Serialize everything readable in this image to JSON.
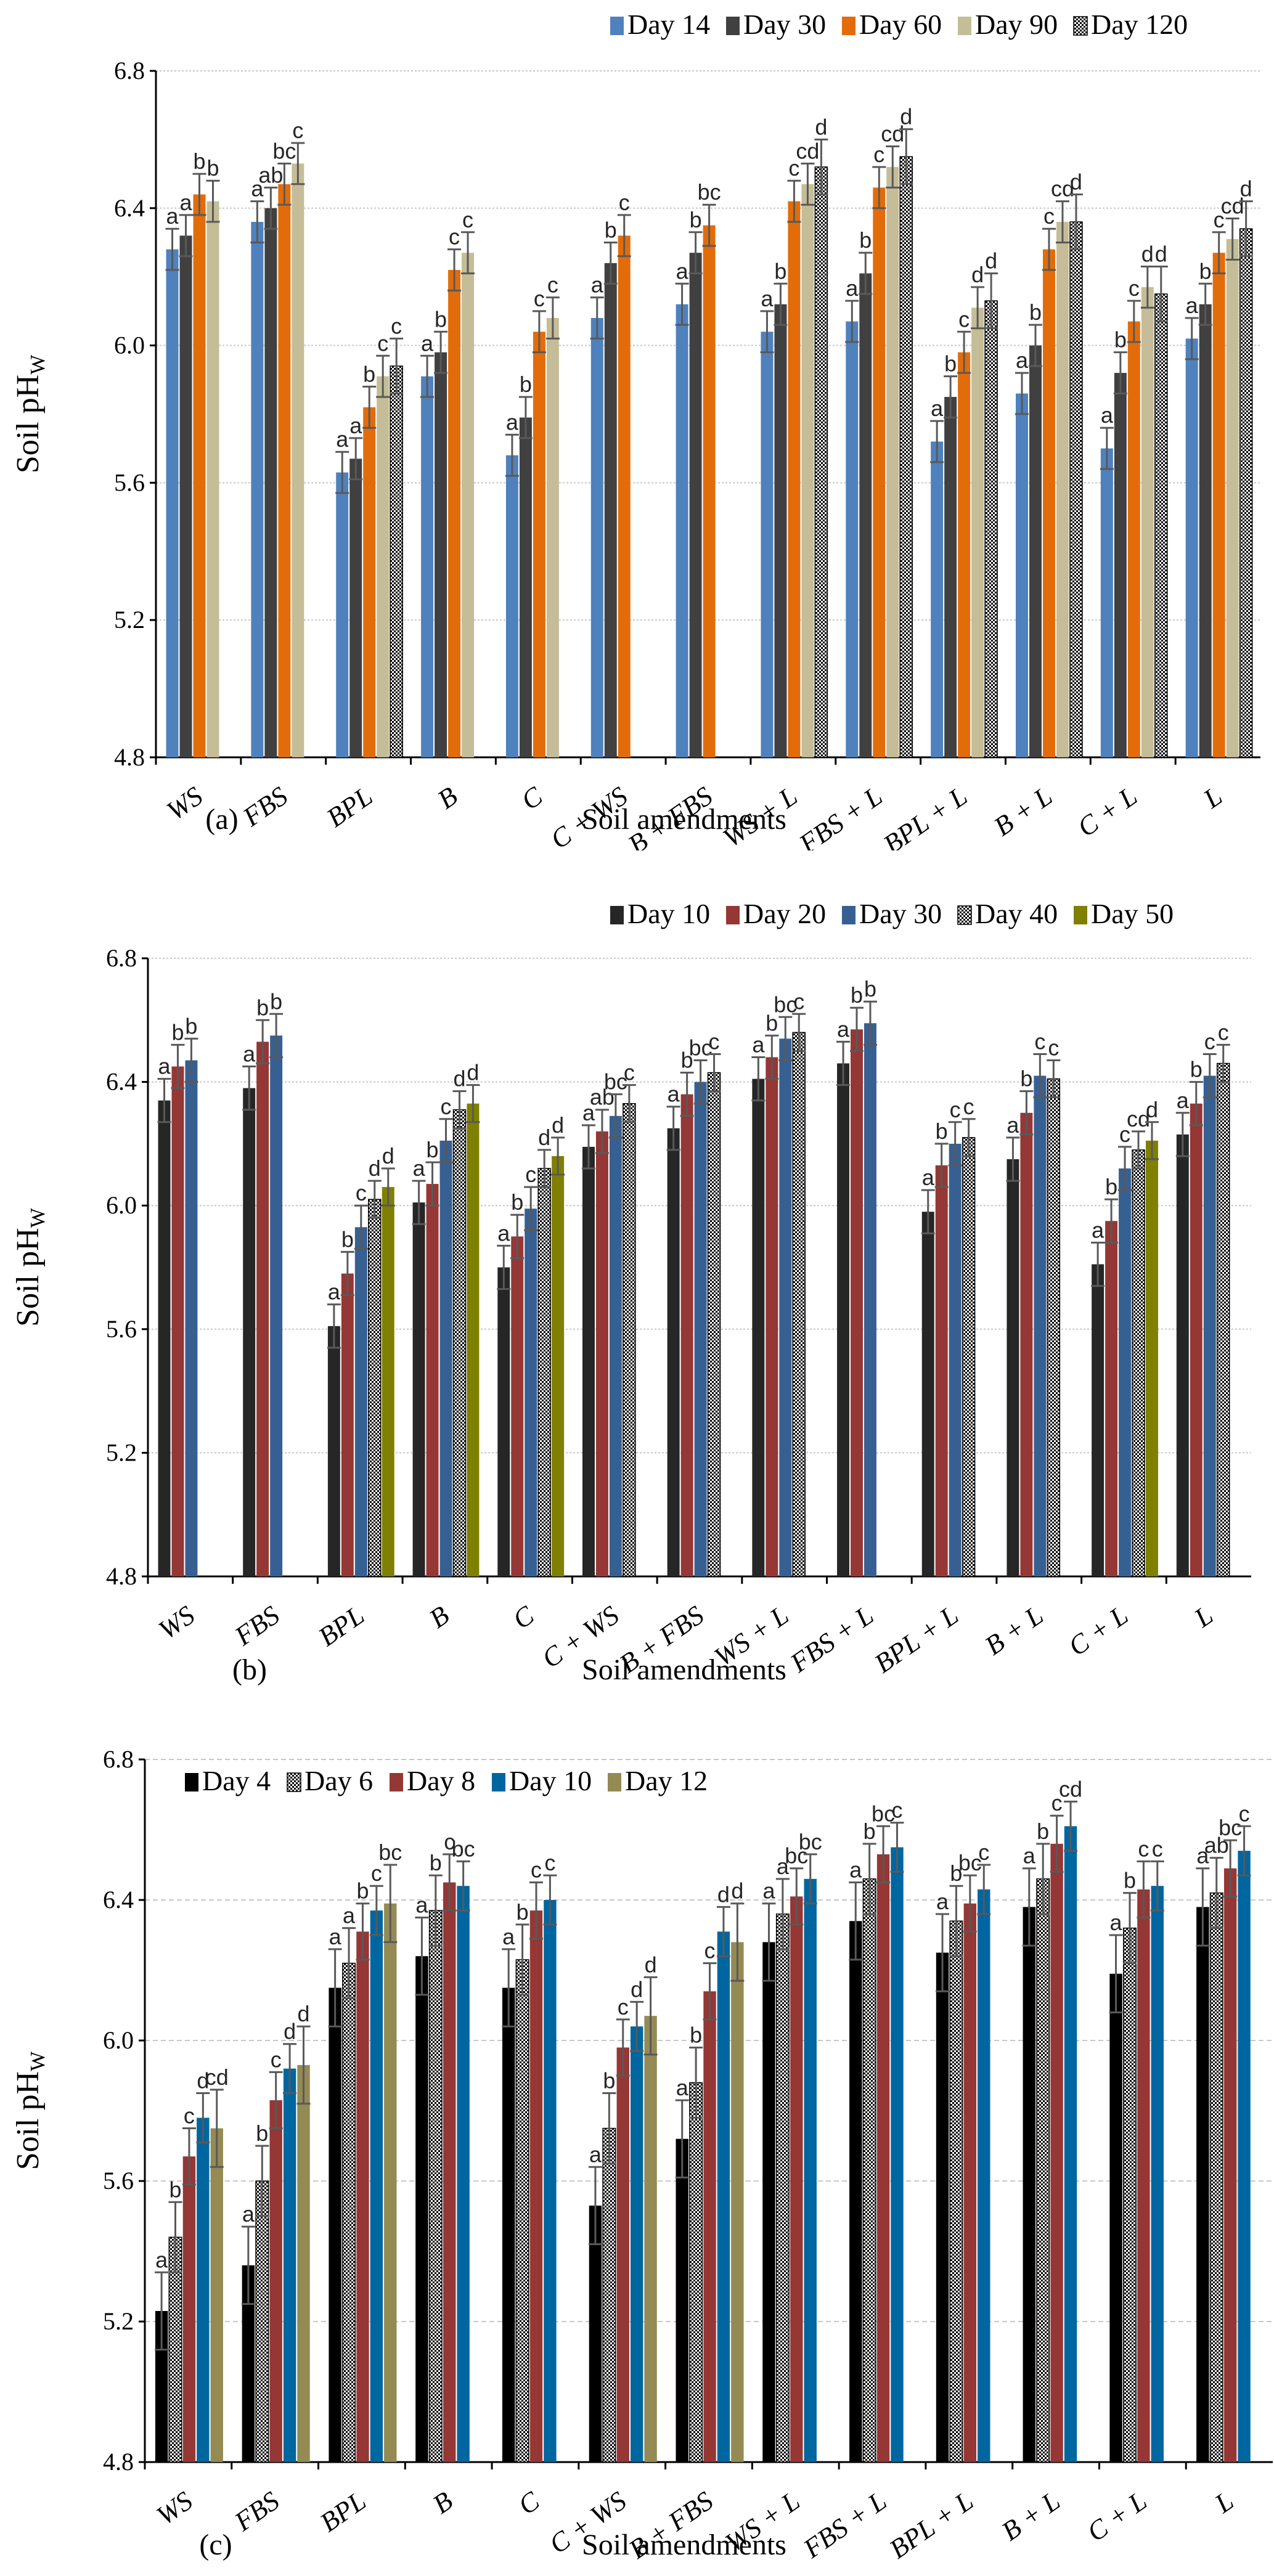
{
  "chart_data": [
    {
      "type": "bar",
      "panel_label": "(a)",
      "xlabel": "Soil amendments",
      "ylabel": "Soil pH",
      "ylabel_sub": "W",
      "ylim": [
        4.8,
        6.8
      ],
      "yticks": [
        "4.8",
        "5.2",
        "5.6",
        "6.0",
        "6.4",
        "6.8"
      ],
      "grid": "dotted",
      "legend_position": "top-right",
      "categories": [
        "WS",
        "FBS",
        "BPL",
        "B",
        "C",
        "C + WS",
        "B + FBS",
        "WS + L",
        "FBS + L",
        "BPL + L",
        "B + L",
        "C + L",
        "L"
      ],
      "series": [
        {
          "name": "Day 14",
          "color": "#4f81bd",
          "pattern": "solid",
          "values": [
            6.28,
            6.36,
            5.63,
            5.91,
            5.68,
            6.08,
            6.12,
            6.04,
            6.07,
            5.72,
            5.86,
            5.7,
            6.02
          ],
          "errors": [
            0.06,
            0.06,
            0.06,
            0.06,
            0.06,
            0.06,
            0.06,
            0.06,
            0.06,
            0.06,
            0.06,
            0.06,
            0.06
          ],
          "letters": [
            "a",
            "a",
            "a",
            "a",
            "a",
            "a",
            "a",
            "a",
            "a",
            "a",
            "a",
            "a",
            "a"
          ]
        },
        {
          "name": "Day 30",
          "color": "#404040",
          "pattern": "solid",
          "values": [
            6.32,
            6.4,
            5.67,
            5.98,
            5.79,
            6.24,
            6.27,
            6.12,
            6.21,
            5.85,
            6.0,
            5.92,
            6.12
          ],
          "errors": [
            0.06,
            0.06,
            0.06,
            0.06,
            0.06,
            0.06,
            0.06,
            0.06,
            0.06,
            0.06,
            0.06,
            0.06,
            0.06
          ],
          "letters": [
            "a",
            "ab",
            "a",
            "b",
            "b",
            "b",
            "b",
            "b",
            "b",
            "b",
            "b",
            "b",
            "b"
          ]
        },
        {
          "name": "Day 60",
          "color": "#e36c0a",
          "pattern": "solid",
          "values": [
            6.44,
            6.47,
            5.82,
            6.22,
            6.04,
            6.32,
            6.35,
            6.42,
            6.46,
            5.98,
            6.28,
            6.07,
            6.27
          ],
          "errors": [
            0.06,
            0.06,
            0.06,
            0.06,
            0.06,
            0.06,
            0.06,
            0.06,
            0.06,
            0.06,
            0.06,
            0.06,
            0.06
          ],
          "letters": [
            "b",
            "bc",
            "b",
            "c",
            "c",
            "c",
            "bc",
            "c",
            "c",
            "c",
            "c",
            "c",
            "c"
          ]
        },
        {
          "name": "Day 90",
          "color": "#c4bd97",
          "pattern": "solid",
          "values": [
            6.42,
            6.53,
            5.91,
            6.27,
            6.08,
            null,
            null,
            6.47,
            6.52,
            6.11,
            6.36,
            6.17,
            6.31
          ],
          "errors": [
            0.06,
            0.06,
            0.06,
            0.06,
            0.06,
            null,
            null,
            0.06,
            0.06,
            0.06,
            0.06,
            0.06,
            0.06
          ],
          "letters": [
            "b",
            "c",
            "c",
            "c",
            "c",
            "",
            "",
            "cd",
            "cd",
            "d",
            "cd",
            "d",
            "cd"
          ]
        },
        {
          "name": "Day 120",
          "color": "#ffffff",
          "pattern": "checker",
          "values": [
            null,
            null,
            5.94,
            null,
            null,
            null,
            null,
            6.52,
            6.55,
            6.13,
            6.36,
            6.15,
            6.34
          ],
          "errors": [
            null,
            null,
            0.08,
            null,
            null,
            null,
            null,
            0.08,
            0.08,
            0.08,
            0.08,
            0.08,
            0.08
          ],
          "letters": [
            "",
            "",
            "c",
            "",
            "",
            "",
            "",
            "d",
            "d",
            "d",
            "d",
            "d",
            "d"
          ]
        }
      ]
    },
    {
      "type": "bar",
      "panel_label": "(b)",
      "xlabel": "Soil amendments",
      "ylabel": "Soil pH",
      "ylabel_sub": "W",
      "ylim": [
        4.8,
        6.8
      ],
      "yticks": [
        "4.8",
        "5.2",
        "5.6",
        "6.0",
        "6.4",
        "6.8"
      ],
      "grid": "dotted",
      "legend_position": "top-right",
      "categories": [
        "WS",
        "FBS",
        "BPL",
        "B",
        "C",
        "C + WS",
        "B + FBS",
        "WS + L",
        "FBS + L",
        "BPL + L",
        "B + L",
        "C + L",
        "L"
      ],
      "series": [
        {
          "name": "Day 10",
          "color": "#262626",
          "pattern": "solid",
          "values": [
            6.34,
            6.38,
            5.61,
            6.01,
            5.8,
            6.19,
            6.25,
            6.41,
            6.46,
            5.98,
            6.15,
            5.81,
            6.23
          ],
          "errors": [
            0.07,
            0.07,
            0.07,
            0.07,
            0.07,
            0.07,
            0.07,
            0.07,
            0.07,
            0.07,
            0.07,
            0.07,
            0.07
          ],
          "letters": [
            "a",
            "a",
            "a",
            "a",
            "a",
            "a",
            "a",
            "a",
            "a",
            "a",
            "a",
            "a",
            "a"
          ]
        },
        {
          "name": "Day 20",
          "color": "#953735",
          "pattern": "solid",
          "values": [
            6.45,
            6.53,
            5.78,
            6.07,
            5.9,
            6.24,
            6.36,
            6.48,
            6.57,
            6.13,
            6.3,
            5.95,
            6.33
          ],
          "errors": [
            0.07,
            0.07,
            0.07,
            0.07,
            0.07,
            0.07,
            0.07,
            0.07,
            0.07,
            0.07,
            0.07,
            0.07,
            0.07
          ],
          "letters": [
            "b",
            "b",
            "b",
            "b",
            "b",
            "ab",
            "b",
            "b",
            "b",
            "b",
            "b",
            "b",
            "b"
          ]
        },
        {
          "name": "Day 30",
          "color": "#376092",
          "pattern": "solid",
          "values": [
            6.47,
            6.55,
            5.93,
            6.21,
            5.99,
            6.29,
            6.4,
            6.54,
            6.59,
            6.2,
            6.42,
            6.12,
            6.42
          ],
          "errors": [
            0.07,
            0.07,
            0.07,
            0.07,
            0.07,
            0.07,
            0.07,
            0.07,
            0.07,
            0.07,
            0.07,
            0.07,
            0.07
          ],
          "letters": [
            "b",
            "b",
            "c",
            "c",
            "c",
            "bc",
            "bc",
            "bc",
            "b",
            "c",
            "c",
            "c",
            "c"
          ]
        },
        {
          "name": "Day 40",
          "color": "#ffffff",
          "pattern": "checker",
          "values": [
            null,
            null,
            6.02,
            6.31,
            6.12,
            6.33,
            6.43,
            6.56,
            null,
            6.22,
            6.41,
            6.18,
            6.46
          ],
          "errors": [
            null,
            null,
            0.06,
            0.06,
            0.06,
            0.06,
            0.06,
            0.06,
            null,
            0.06,
            0.06,
            0.06,
            0.06
          ],
          "letters": [
            "",
            "",
            "d",
            "d",
            "d",
            "c",
            "c",
            "c",
            "",
            "c",
            "c",
            "cd",
            "c"
          ]
        },
        {
          "name": "Day 50",
          "color": "#7f7f00",
          "pattern": "solid",
          "values": [
            null,
            null,
            6.06,
            6.33,
            6.16,
            null,
            null,
            null,
            null,
            null,
            null,
            6.21,
            null
          ],
          "errors": [
            null,
            null,
            0.06,
            0.06,
            0.06,
            null,
            null,
            null,
            null,
            null,
            null,
            0.06,
            null
          ],
          "letters": [
            "",
            "",
            "d",
            "d",
            "d",
            "",
            "",
            "",
            "",
            "",
            "",
            "d",
            ""
          ]
        }
      ]
    },
    {
      "type": "bar",
      "panel_label": "(c)",
      "xlabel": "Soil amendments",
      "ylabel": "Soil pH",
      "ylabel_sub": "W",
      "ylim": [
        4.8,
        6.8
      ],
      "yticks": [
        "4.8",
        "5.2",
        "5.6",
        "6.0",
        "6.4",
        "6.8"
      ],
      "grid": "dashed",
      "legend_position": "top-left",
      "categories": [
        "WS",
        "FBS",
        "BPL",
        "B",
        "C",
        "C + WS",
        "B + FBS",
        "WS + L",
        "FBS + L",
        "BPL + L",
        "B + L",
        "C + L",
        "L"
      ],
      "series": [
        {
          "name": "Day 4",
          "color": "#000000",
          "pattern": "solid",
          "values": [
            5.23,
            5.36,
            6.15,
            6.24,
            6.15,
            5.53,
            5.72,
            6.28,
            6.34,
            6.25,
            6.38,
            6.19,
            6.38
          ],
          "errors": [
            0.11,
            0.11,
            0.11,
            0.11,
            0.11,
            0.11,
            0.11,
            0.11,
            0.11,
            0.11,
            0.11,
            0.11,
            0.11
          ],
          "letters": [
            "a",
            "a",
            "a",
            "a",
            "a",
            "a",
            "a",
            "a",
            "a",
            "a",
            "a",
            "a",
            "a"
          ]
        },
        {
          "name": "Day 6",
          "color": "#ffffff",
          "pattern": "checker",
          "values": [
            5.44,
            5.6,
            6.22,
            6.37,
            6.23,
            5.75,
            5.88,
            6.36,
            6.46,
            6.34,
            6.46,
            6.32,
            6.42
          ],
          "errors": [
            0.1,
            0.1,
            0.1,
            0.1,
            0.1,
            0.1,
            0.1,
            0.1,
            0.1,
            0.1,
            0.1,
            0.1,
            0.1
          ],
          "letters": [
            "b",
            "b",
            "a",
            "b",
            "b",
            "b",
            "b",
            "a",
            "b",
            "b",
            "b",
            "b",
            "ab"
          ]
        },
        {
          "name": "Day 8",
          "color": "#953735",
          "pattern": "solid",
          "values": [
            5.67,
            5.83,
            6.31,
            6.45,
            6.37,
            5.98,
            6.14,
            6.41,
            6.53,
            6.39,
            6.56,
            6.43,
            6.49
          ],
          "errors": [
            0.08,
            0.08,
            0.08,
            0.08,
            0.08,
            0.08,
            0.08,
            0.08,
            0.08,
            0.08,
            0.08,
            0.08,
            0.08
          ],
          "letters": [
            "c",
            "c",
            "b",
            "c",
            "c",
            "c",
            "c",
            "bc",
            "bc",
            "bc",
            "c",
            "c",
            "bc"
          ]
        },
        {
          "name": "Day 10",
          "color": "#0066a0",
          "pattern": "solid",
          "values": [
            5.78,
            5.92,
            6.37,
            6.44,
            6.4,
            6.04,
            6.31,
            6.46,
            6.55,
            6.43,
            6.61,
            6.44,
            6.54
          ],
          "errors": [
            0.07,
            0.07,
            0.07,
            0.07,
            0.07,
            0.07,
            0.07,
            0.07,
            0.07,
            0.07,
            0.07,
            0.07,
            0.07
          ],
          "letters": [
            "d",
            "d",
            "c",
            "bc",
            "c",
            "d",
            "d",
            "bc",
            "c",
            "c",
            "cd",
            "c",
            "c"
          ]
        },
        {
          "name": "Day 12",
          "color": "#948a54",
          "pattern": "solid",
          "values": [
            5.75,
            5.93,
            6.39,
            null,
            null,
            6.07,
            6.28,
            null,
            null,
            null,
            null,
            null,
            null
          ],
          "errors": [
            0.11,
            0.11,
            0.11,
            null,
            null,
            0.11,
            0.11,
            null,
            null,
            null,
            null,
            null,
            null
          ],
          "letters": [
            "cd",
            "d",
            "bc",
            "",
            "",
            "d",
            "d",
            "",
            "",
            "",
            "",
            "",
            ""
          ]
        }
      ]
    }
  ]
}
